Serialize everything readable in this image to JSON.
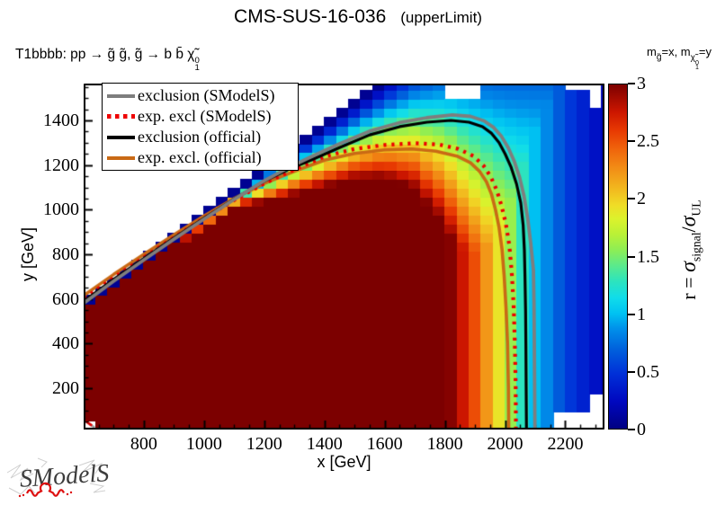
{
  "title": {
    "main": "CMS-SUS-16-036",
    "sub": "(upperLimit)"
  },
  "process_label": {
    "before_chi": "T1bbbb: pp  → g̃ g̃, g̃  → b b̄  ",
    "chi": "χ̃",
    "chi_sup": "0",
    "chi_sub": "1"
  },
  "mass_label": {
    "m1": "m",
    "m1_sub": "g̃",
    "mid": "=x, m",
    "chi": "χ̃",
    "chi_sup": "0",
    "chi_sub": "1",
    "end": "=y"
  },
  "legend": {
    "items": [
      {
        "label": "exclusion (SModelS)",
        "color": "#7e7e7e",
        "style": "solid"
      },
      {
        "label": "exp. excl (SModelS)",
        "color": "#ee0000",
        "style": "dotted"
      },
      {
        "label": "exclusion (official)",
        "color": "#000000",
        "style": "solid"
      },
      {
        "label": "exp. excl. (official)",
        "color": "#c96a15",
        "style": "solid"
      }
    ]
  },
  "axes": {
    "x_title": "x [GeV]",
    "y_title": "y [GeV]"
  },
  "colorbar": {
    "label_prefix": "r = ",
    "sigma": "σ",
    "sub_signal": "signal",
    "slash": "/",
    "sub_ul": "UL"
  },
  "logo_text": "SModelS",
  "chart_data": {
    "type": "heatmap",
    "x_range": [
      600,
      2330
    ],
    "y_range": [
      15,
      1565
    ],
    "grid_step_gev": 40,
    "x_ticks": [
      800,
      1000,
      1200,
      1400,
      1600,
      1800,
      2000,
      2200
    ],
    "y_ticks": [
      200,
      400,
      600,
      800,
      1000,
      1200,
      1400
    ],
    "minor_tick_step": 50,
    "z_range": [
      0,
      3
    ],
    "z_ticks": [
      0,
      0.5,
      1,
      1.5,
      2,
      2.5,
      3
    ],
    "palette": [
      [
        0.0,
        "#000082"
      ],
      [
        0.08,
        "#0008c0"
      ],
      [
        0.16,
        "#0030d8"
      ],
      [
        0.23,
        "#0060dc"
      ],
      [
        0.29,
        "#0090ea"
      ],
      [
        0.335,
        "#00c2f2"
      ],
      [
        0.38,
        "#10dcea"
      ],
      [
        0.43,
        "#2ee4bc"
      ],
      [
        0.475,
        "#5cea8a"
      ],
      [
        0.52,
        "#8eee54"
      ],
      [
        0.565,
        "#baf136"
      ],
      [
        0.61,
        "#dcf22c"
      ],
      [
        0.65,
        "#f0dc26"
      ],
      [
        0.7,
        "#f2b61e"
      ],
      [
        0.755,
        "#f28e16"
      ],
      [
        0.81,
        "#f0660c"
      ],
      [
        0.865,
        "#e83a02"
      ],
      [
        0.92,
        "#cc1600"
      ],
      [
        1.0,
        "#7c0000"
      ]
    ],
    "diagonal_offset": 25,
    "r_model": {
      "description": "r(x,y) = min( fx(x), 3.2 * clamp(((x - diagonal_offset) - y) / w_diag(x), 0, 1) ); cells with y above diagonal are empty (white)",
      "fx": [
        [
          600,
          3.2
        ],
        [
          1800,
          3.2
        ],
        [
          1815,
          3.0
        ],
        [
          1862,
          2.75
        ],
        [
          1912,
          2.45
        ],
        [
          1956,
          2.1
        ],
        [
          2000,
          1.75
        ],
        [
          2050,
          1.35
        ],
        [
          2100,
          1.0
        ],
        [
          2150,
          0.8
        ],
        [
          2205,
          0.55
        ],
        [
          2265,
          0.38
        ],
        [
          2330,
          0.22
        ]
      ],
      "w_diag": [
        [
          600,
          15
        ],
        [
          1100,
          60
        ],
        [
          1200,
          150
        ],
        [
          1300,
          220
        ],
        [
          1400,
          290
        ],
        [
          1500,
          360
        ],
        [
          1600,
          460
        ],
        [
          1700,
          620
        ],
        [
          1800,
          900
        ],
        [
          1900,
          1350
        ],
        [
          2000,
          1850
        ],
        [
          2330,
          3300
        ]
      ]
    },
    "masked_regions": [
      {
        "x": [
          600,
          643
        ],
        "y": [
          15,
          58
        ],
        "marker": "red-dash"
      },
      {
        "x": [
          1807,
          1928
        ],
        "y": [
          1490,
          1565
        ]
      },
      {
        "x": [
          2190,
          2322
        ],
        "y": [
          1528,
          1565
        ]
      },
      {
        "x": [
          2272,
          2322
        ],
        "y": [
          1448,
          1565
        ]
      },
      {
        "x": [
          2145,
          2280
        ],
        "y": [
          15,
          112
        ]
      },
      {
        "x": [
          2280,
          2326
        ],
        "y": [
          15,
          162
        ]
      }
    ],
    "curves": [
      {
        "name": "exp. excl. (official)",
        "color": "#c96a15",
        "style": "solid",
        "width": 3.6,
        "points": [
          [
            602,
            617
          ],
          [
            700,
            710
          ],
          [
            800,
            800
          ],
          [
            900,
            888
          ],
          [
            1000,
            972
          ],
          [
            1100,
            1050
          ],
          [
            1200,
            1118
          ],
          [
            1300,
            1172
          ],
          [
            1400,
            1222
          ],
          [
            1500,
            1252
          ],
          [
            1600,
            1268
          ],
          [
            1690,
            1272
          ],
          [
            1770,
            1262
          ],
          [
            1840,
            1240
          ],
          [
            1885,
            1210
          ],
          [
            1915,
            1172
          ],
          [
            1938,
            1125
          ],
          [
            1955,
            1068
          ],
          [
            1968,
            1000
          ],
          [
            1980,
            920
          ],
          [
            1990,
            820
          ],
          [
            1997,
            700
          ],
          [
            2003,
            560
          ],
          [
            2008,
            400
          ],
          [
            2011,
            200
          ],
          [
            2012,
            15
          ]
        ]
      },
      {
        "name": "exp. excl (SModelS)",
        "color": "#ee0000",
        "style": "dotted",
        "width": 4.2,
        "points": [
          [
            602,
            602
          ],
          [
            700,
            695
          ],
          [
            800,
            786
          ],
          [
            900,
            875
          ],
          [
            1000,
            962
          ],
          [
            1100,
            1043
          ],
          [
            1200,
            1117
          ],
          [
            1300,
            1180
          ],
          [
            1400,
            1238
          ],
          [
            1500,
            1272
          ],
          [
            1600,
            1290
          ],
          [
            1700,
            1298
          ],
          [
            1780,
            1292
          ],
          [
            1845,
            1272
          ],
          [
            1895,
            1240
          ],
          [
            1928,
            1198
          ],
          [
            1952,
            1148
          ],
          [
            1972,
            1088
          ],
          [
            1988,
            1018
          ],
          [
            2002,
            940
          ],
          [
            2014,
            840
          ],
          [
            2022,
            720
          ],
          [
            2028,
            580
          ],
          [
            2032,
            420
          ],
          [
            2035,
            220
          ],
          [
            2036,
            15
          ]
        ]
      },
      {
        "name": "exclusion (official)",
        "color": "#000000",
        "style": "solid",
        "width": 3.2,
        "points": [
          [
            602,
            592
          ],
          [
            700,
            688
          ],
          [
            800,
            782
          ],
          [
            900,
            873
          ],
          [
            1000,
            962
          ],
          [
            1100,
            1048
          ],
          [
            1200,
            1128
          ],
          [
            1280,
            1180
          ],
          [
            1360,
            1225
          ],
          [
            1450,
            1278
          ],
          [
            1550,
            1335
          ],
          [
            1650,
            1372
          ],
          [
            1740,
            1392
          ],
          [
            1820,
            1400
          ],
          [
            1880,
            1392
          ],
          [
            1925,
            1372
          ],
          [
            1955,
            1342
          ],
          [
            1980,
            1300
          ],
          [
            2000,
            1250
          ],
          [
            2020,
            1190
          ],
          [
            2038,
            1115
          ],
          [
            2052,
            1030
          ],
          [
            2060,
            930
          ],
          [
            2064,
            820
          ],
          [
            2066,
            700
          ],
          [
            2068,
            550
          ],
          [
            2069,
            400
          ],
          [
            2070,
            200
          ],
          [
            2071,
            15
          ]
        ]
      },
      {
        "name": "exclusion (SModelS)",
        "color": "#7e7e7e",
        "style": "solid",
        "width": 3.8,
        "points": [
          [
            602,
            583
          ],
          [
            700,
            680
          ],
          [
            800,
            775
          ],
          [
            900,
            868
          ],
          [
            1000,
            958
          ],
          [
            1100,
            1046
          ],
          [
            1200,
            1130
          ],
          [
            1280,
            1188
          ],
          [
            1360,
            1240
          ],
          [
            1450,
            1295
          ],
          [
            1550,
            1352
          ],
          [
            1650,
            1390
          ],
          [
            1740,
            1412
          ],
          [
            1825,
            1425
          ],
          [
            1885,
            1418
          ],
          [
            1930,
            1398
          ],
          [
            1962,
            1368
          ],
          [
            1988,
            1328
          ],
          [
            2010,
            1278
          ],
          [
            2030,
            1218
          ],
          [
            2048,
            1145
          ],
          [
            2063,
            1060
          ],
          [
            2075,
            960
          ],
          [
            2085,
            850
          ],
          [
            2094,
            730
          ],
          [
            2096,
            580
          ],
          [
            2097,
            420
          ],
          [
            2098,
            220
          ],
          [
            2099,
            15
          ]
        ]
      }
    ]
  }
}
